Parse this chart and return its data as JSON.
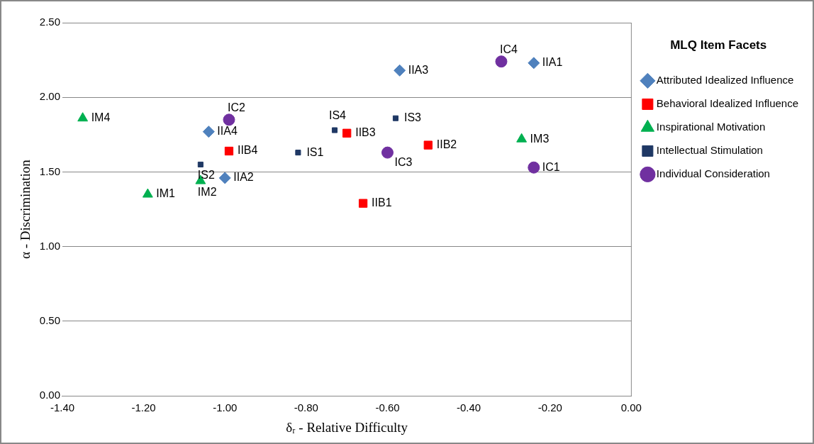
{
  "chart_data": {
    "type": "scatter",
    "xlabel": "δᵣ - Relative Difficulty",
    "ylabel": "α - Discrimination",
    "legend_title": "MLQ Item Facets",
    "legend": "right",
    "grid": "y",
    "xlim": [
      -1.4,
      0
    ],
    "ylim": [
      0,
      2.5
    ],
    "xticks": [
      {
        "value": -1.4,
        "label": "-1.40"
      },
      {
        "value": -1.2,
        "label": "-1.20"
      },
      {
        "value": -1.0,
        "label": "-1.00"
      },
      {
        "value": -0.8,
        "label": "-0.80"
      },
      {
        "value": -0.6,
        "label": "-0.60"
      },
      {
        "value": -0.4,
        "label": "-0.40"
      },
      {
        "value": -0.2,
        "label": "-0.20"
      },
      {
        "value": 0,
        "label": "0.00"
      }
    ],
    "yticks": [
      {
        "value": 0,
        "label": "0.00"
      },
      {
        "value": 0.5,
        "label": "0.50"
      },
      {
        "value": 1.0,
        "label": "1.00"
      },
      {
        "value": 1.5,
        "label": "1.50"
      },
      {
        "value": 2.0,
        "label": "2.00"
      },
      {
        "value": 2.5,
        "label": "2.50"
      }
    ],
    "series": [
      {
        "name": "Attributed Idealized Influence",
        "color": "#4f81bd",
        "marker": "diamond",
        "x": [
          -0.24,
          -1.0,
          -0.57,
          -1.04
        ],
        "values": [
          2.23,
          1.46,
          2.18,
          1.77
        ]
      },
      {
        "name": "Behavioral Idealized Influence",
        "color": "#ff0000",
        "marker": "square",
        "x": [
          -0.66,
          -0.5,
          -0.7,
          -0.99
        ],
        "values": [
          1.29,
          1.68,
          1.76,
          1.64
        ]
      },
      {
        "name": "Inspirational Motivation",
        "color": "#00b050",
        "marker": "triangle",
        "x": [
          -1.19,
          -1.06,
          -0.27,
          -1.35
        ],
        "values": [
          1.35,
          1.44,
          1.72,
          1.86
        ]
      },
      {
        "name": "Intellectual Stimulation",
        "color": "#1f3864",
        "marker": "square",
        "x": [
          -0.82,
          -1.06,
          -0.58,
          -0.73
        ],
        "values": [
          1.63,
          1.55,
          1.86,
          1.78
        ]
      },
      {
        "name": "Individual Consideration",
        "color": "#7030a0",
        "marker": "circle",
        "x": [
          -0.24,
          -0.99,
          -0.6,
          -0.32
        ],
        "values": [
          1.53,
          1.85,
          1.63,
          2.24
        ]
      }
    ],
    "annotations": [
      {
        "text": "IIA1",
        "x": -0.24,
        "y": 2.23
      },
      {
        "text": "IIA2",
        "x": -1.0,
        "y": 1.46
      },
      {
        "text": "IIA3",
        "x": -0.57,
        "y": 2.18
      },
      {
        "text": "IIA4",
        "x": -1.04,
        "y": 1.77
      },
      {
        "text": "IIB1",
        "x": -0.66,
        "y": 1.29
      },
      {
        "text": "IIB2",
        "x": -0.5,
        "y": 1.68
      },
      {
        "text": "IIB3",
        "x": -0.7,
        "y": 1.76
      },
      {
        "text": "IIB4",
        "x": -0.99,
        "y": 1.64
      },
      {
        "text": "IM1",
        "x": -1.19,
        "y": 1.35
      },
      {
        "text": "IM2",
        "x": -1.06,
        "y": 1.44
      },
      {
        "text": "IM3",
        "x": -0.27,
        "y": 1.72
      },
      {
        "text": "IM4",
        "x": -1.35,
        "y": 1.86
      },
      {
        "text": "IS1",
        "x": -0.82,
        "y": 1.63
      },
      {
        "text": "IS2",
        "x": -1.06,
        "y": 1.55
      },
      {
        "text": "IS3",
        "x": -0.58,
        "y": 1.86
      },
      {
        "text": "IS4",
        "x": -0.73,
        "y": 1.78
      },
      {
        "text": "IC1",
        "x": -0.24,
        "y": 1.53
      },
      {
        "text": "IC2",
        "x": -0.99,
        "y": 1.85
      },
      {
        "text": "IC3",
        "x": -0.6,
        "y": 1.63
      },
      {
        "text": "IC4",
        "x": -0.32,
        "y": 2.24
      }
    ]
  }
}
